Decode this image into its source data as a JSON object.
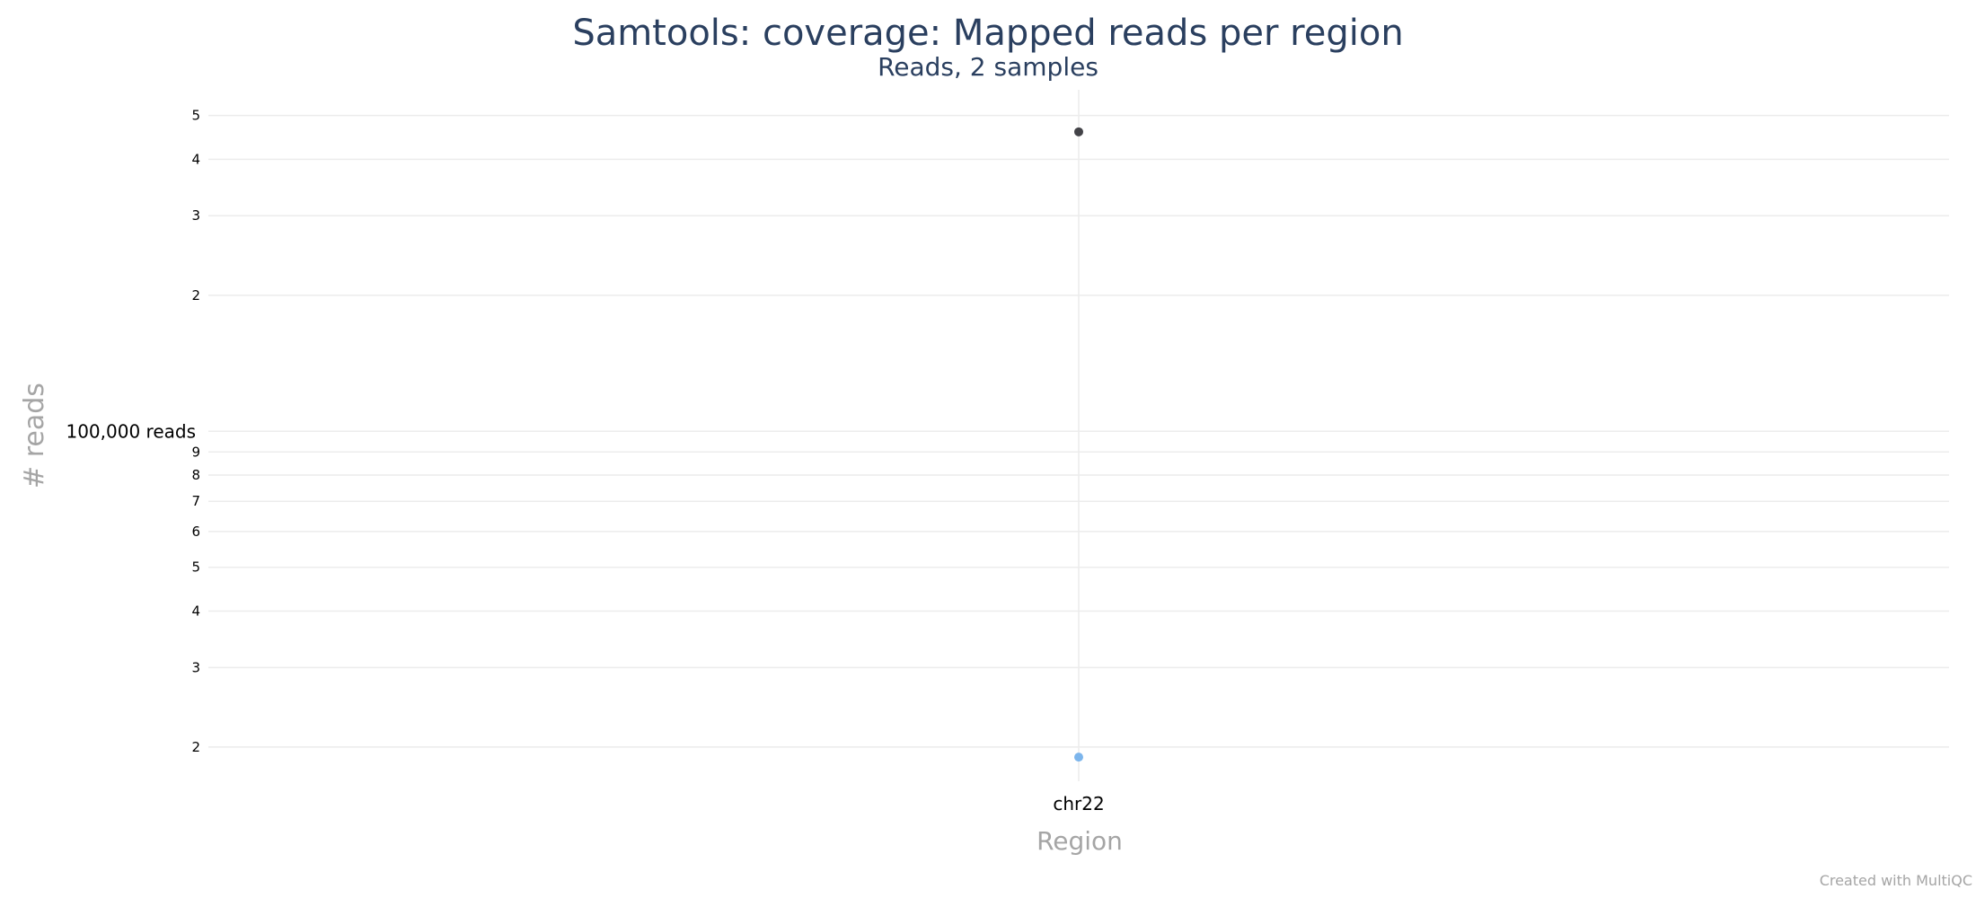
{
  "chart_data": {
    "type": "scatter",
    "title": "Samtools: coverage: Mapped reads per region",
    "subtitle": "Reads, 2 samples",
    "xlabel": "Region",
    "ylabel": "# reads",
    "categories": [
      "chr22"
    ],
    "y_scale": "log",
    "ylim": [
      16800,
      570000
    ],
    "y_major_tick": {
      "value": 100000,
      "label": "100,000 reads"
    },
    "y_minor_ticks": [
      {
        "value": 20000,
        "label": "2"
      },
      {
        "value": 30000,
        "label": "3"
      },
      {
        "value": 40000,
        "label": "4"
      },
      {
        "value": 50000,
        "label": "5"
      },
      {
        "value": 60000,
        "label": "6"
      },
      {
        "value": 70000,
        "label": "7"
      },
      {
        "value": 80000,
        "label": "8"
      },
      {
        "value": 90000,
        "label": "9"
      },
      {
        "value": 200000,
        "label": "2"
      },
      {
        "value": 300000,
        "label": "3"
      },
      {
        "value": 400000,
        "label": "4"
      },
      {
        "value": 500000,
        "label": "5"
      }
    ],
    "series": [
      {
        "values": [
          460000
        ],
        "color": "#434348"
      },
      {
        "values": [
          19000
        ],
        "color": "#7cb5ec"
      }
    ],
    "grid": true,
    "legend": "none"
  },
  "credit": "Created with MultiQC"
}
